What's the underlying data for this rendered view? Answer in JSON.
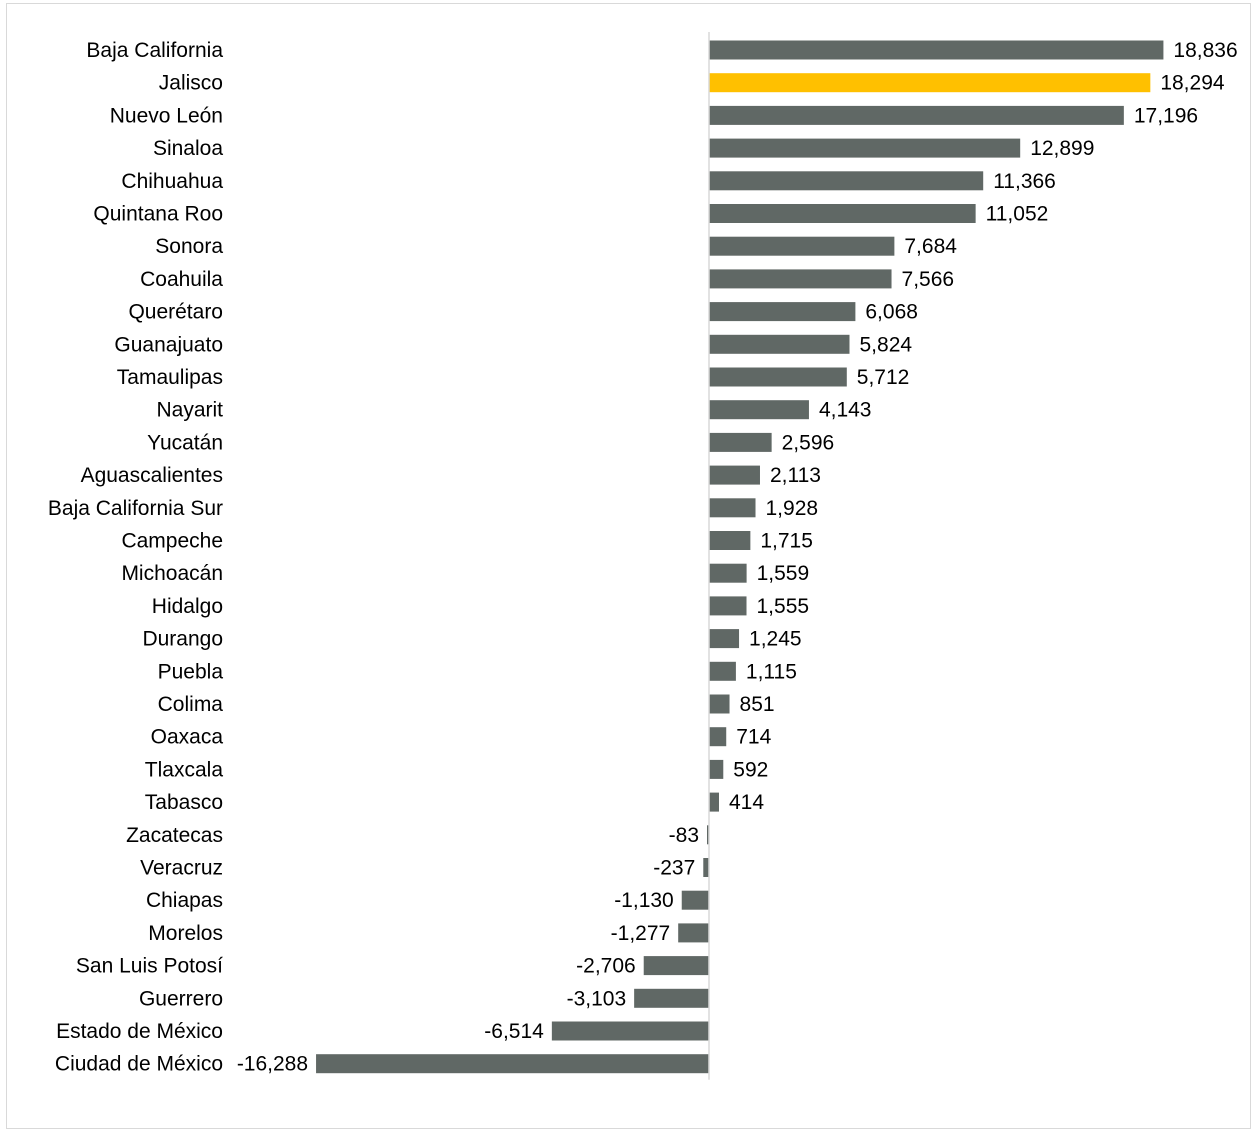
{
  "chart_data": {
    "type": "bar",
    "orientation": "horizontal",
    "title": "",
    "xlabel": "",
    "ylabel": "",
    "grid": false,
    "legend": "none",
    "xlim": [
      -18500,
      19500
    ],
    "colors": {
      "default": "#606865",
      "highlight": "#ffc000",
      "axis": "#d9d9d9"
    },
    "highlight_category": "Jalisco",
    "categories": [
      "Baja California",
      "Jalisco",
      "Nuevo León",
      "Sinaloa",
      "Chihuahua",
      "Quintana Roo",
      "Sonora",
      "Coahuila",
      "Querétaro",
      "Guanajuato",
      "Tamaulipas",
      "Nayarit",
      "Yucatán",
      "Aguascalientes",
      "Baja California Sur",
      "Campeche",
      "Michoacán",
      "Hidalgo",
      "Durango",
      "Puebla",
      "Colima",
      "Oaxaca",
      "Tlaxcala",
      "Tabasco",
      "Zacatecas",
      "Veracruz",
      "Chiapas",
      "Morelos",
      "San Luis Potosí",
      "Guerrero",
      "Estado de México",
      "Ciudad de México"
    ],
    "values": [
      18836,
      18294,
      17196,
      12899,
      11366,
      11052,
      7684,
      7566,
      6068,
      5824,
      5712,
      4143,
      2596,
      2113,
      1928,
      1715,
      1559,
      1555,
      1245,
      1115,
      851,
      714,
      592,
      414,
      -83,
      -237,
      -1130,
      -1277,
      -2706,
      -3103,
      -6514,
      -16288
    ],
    "value_labels": [
      "18,836",
      "18,294",
      "17,196",
      "12,899",
      "11,366",
      "11,052",
      "7,684",
      "7,566",
      "6,068",
      "5,824",
      "5,712",
      "4,143",
      "2,596",
      "2,113",
      "1,928",
      "1,715",
      "1,559",
      "1,555",
      "1,245",
      "1,115",
      "851",
      "714",
      "592",
      "414",
      "-83",
      "-237",
      "-1,130",
      "-1,277",
      "-2,706",
      "-3,103",
      "-6,514",
      "-16,288"
    ]
  }
}
